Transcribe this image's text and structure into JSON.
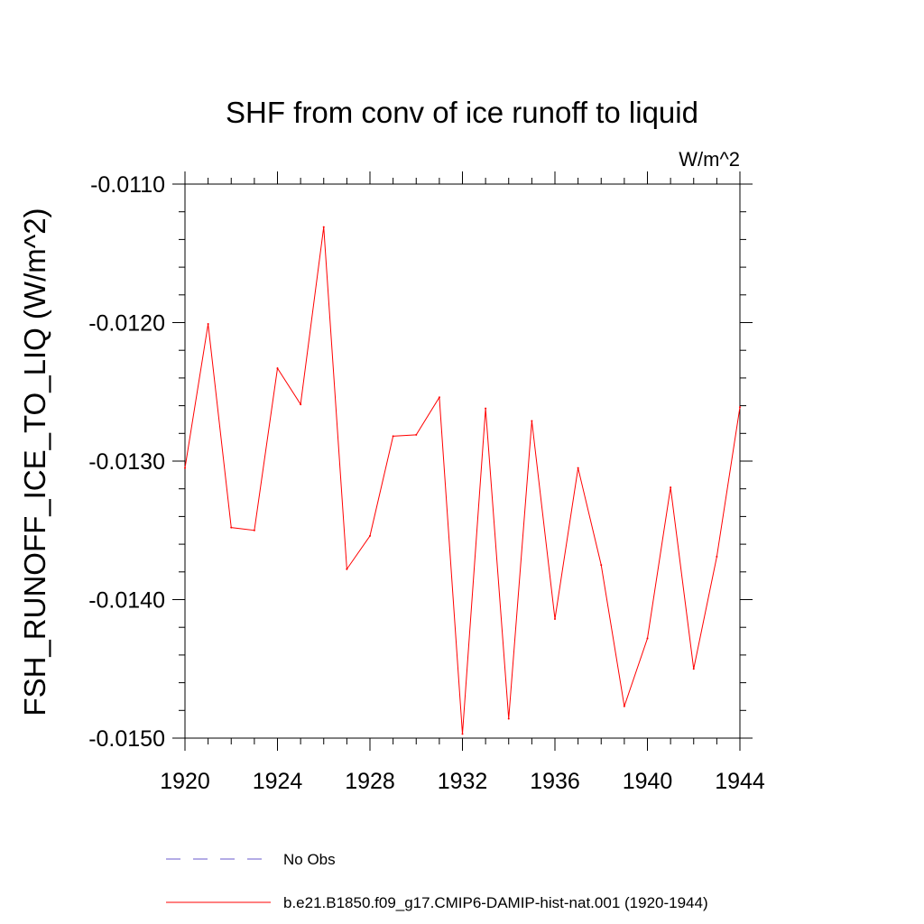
{
  "chart_data": {
    "type": "line",
    "title": "SHF from conv of ice runoff to liquid",
    "units": "W/m^2",
    "ylabel": "FSH_RUNOFF_ICE_TO_LIQ  (W/m^2)",
    "xlabel": "",
    "xlim": [
      1920,
      1944
    ],
    "ylim": [
      -0.015,
      -0.011
    ],
    "x_ticks": [
      1920,
      1924,
      1928,
      1932,
      1936,
      1940,
      1944
    ],
    "x_tick_labels": [
      "1920",
      "1924",
      "1928",
      "1932",
      "1936",
      "1940",
      "1944"
    ],
    "y_ticks": [
      -0.011,
      -0.012,
      -0.013,
      -0.014,
      -0.015
    ],
    "y_tick_labels": [
      "-0.0110",
      "-0.0120",
      "-0.0130",
      "-0.0140",
      "-0.0150"
    ],
    "grid": false,
    "legend_position": "bottom",
    "series": [
      {
        "name": "b.e21.B1850.f09_g17.CMIP6-DAMIP-hist-nat.001 (1920-1944)",
        "color": "#ff0000",
        "style": "solid",
        "x": [
          1920,
          1921,
          1922,
          1923,
          1924,
          1925,
          1926,
          1927,
          1928,
          1929,
          1930,
          1931,
          1932,
          1933,
          1934,
          1935,
          1936,
          1937,
          1938,
          1939,
          1940,
          1941,
          1942,
          1943,
          1944
        ],
        "values": [
          -0.01305,
          -0.01201,
          -0.01348,
          -0.0135,
          -0.01233,
          -0.01259,
          -0.01131,
          -0.01378,
          -0.01354,
          -0.01282,
          -0.01281,
          -0.01254,
          -0.01497,
          -0.01262,
          -0.01486,
          -0.01271,
          -0.01414,
          -0.01305,
          -0.01375,
          -0.01477,
          -0.01428,
          -0.01319,
          -0.0145,
          -0.01369,
          -0.01261
        ]
      }
    ],
    "legend": [
      {
        "label": "No Obs",
        "color": "#6a5acd",
        "style": "dashed"
      },
      {
        "label": "b.e21.B1850.f09_g17.CMIP6-DAMIP-hist-nat.001 (1920-1944)",
        "color": "#ff0000",
        "style": "solid"
      }
    ]
  }
}
